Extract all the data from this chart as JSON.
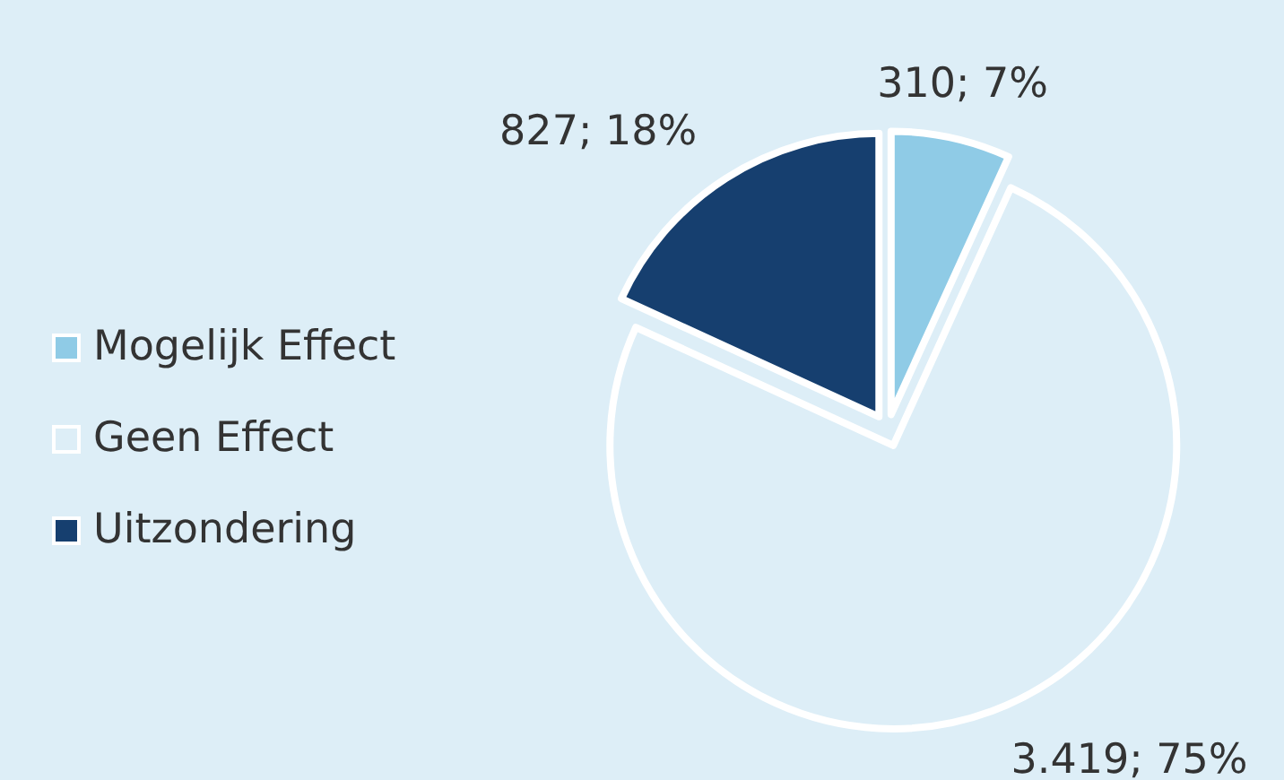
{
  "chart_data": {
    "type": "pie",
    "categories": [
      "Mogelijk Effect",
      "Geen Effect",
      "Uitzondering"
    ],
    "values": [
      310,
      3419,
      827
    ],
    "colors": [
      "#8fcbe6",
      "#ddeef7",
      "#163f6f"
    ],
    "value_labels": [
      "310; 7%",
      "3.419; 75%",
      "827; 18%"
    ],
    "legend": "left"
  }
}
